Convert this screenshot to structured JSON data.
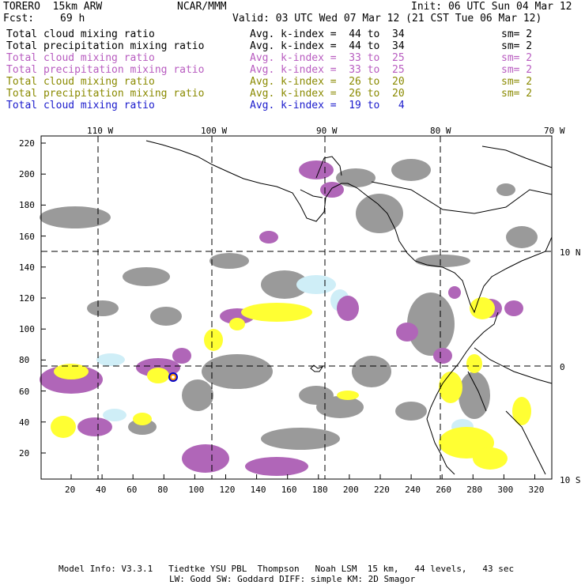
{
  "header": {
    "model_label": "TORERO  15km ARW",
    "org": "NCAR/MMM",
    "init": "Init: 06 UTC Sun 04 Mar 12",
    "fcst_label": "Fcst:",
    "fcst_value": "69 h",
    "valid": "Valid: 03 UTC Wed 07 Mar 12 (21 CST Tue 06 Mar 12)"
  },
  "legend_rows": [
    {
      "field": "Total cloud mixing ratio",
      "kindex": "Avg. k-index =  44 to  34",
      "sm": "sm= 2",
      "color": "#000000"
    },
    {
      "field": "Total precipitation mixing ratio",
      "kindex": "Avg. k-index =  44 to  34",
      "sm": "sm= 2",
      "color": "#000000"
    },
    {
      "field": "Total cloud mixing ratio",
      "kindex": "Avg. k-index =  33 to  25",
      "sm": "sm= 2",
      "color": "#b85cc0"
    },
    {
      "field": "Total precipitation mixing ratio",
      "kindex": "Avg. k-index =  33 to  25",
      "sm": "sm= 2",
      "color": "#b85cc0"
    },
    {
      "field": "Total cloud mixing ratio",
      "kindex": "Avg. k-index =  26 to  20",
      "sm": "sm= 2",
      "color": "#8a8a00"
    },
    {
      "field": "Total precipitation mixing ratio",
      "kindex": "Avg. k-index =  26 to  20",
      "sm": "sm= 2",
      "color": "#8a8a00"
    },
    {
      "field": "Total cloud mixing ratio",
      "kindex": "Avg. k-index =  19 to   4",
      "sm": "",
      "color": "#1a1acc"
    }
  ],
  "map": {
    "lon_labels": [
      "110 W",
      "100 W",
      "90 W",
      "80 W",
      "70 W"
    ],
    "lat_labels": [
      "10 N",
      "0",
      "10 S"
    ],
    "y_ticks": [
      "220",
      "200",
      "180",
      "160",
      "140",
      "120",
      "100",
      "80",
      "60",
      "40",
      "20"
    ],
    "x_ticks": [
      "20",
      "40",
      "60",
      "80",
      "100",
      "120",
      "140",
      "160",
      "180",
      "200",
      "220",
      "240",
      "260",
      "280",
      "300",
      "320"
    ],
    "colors": {
      "gray": "#9a9a9a",
      "purple": "#b066b8",
      "yellow": "#ffff33",
      "lightblue": "#cfeef7",
      "coast": "#000000"
    }
  },
  "footer": {
    "line1": "Model Info: V3.3.1   Tiedtke YSU PBL  Thompson   Noah LSM  15 km,   44 levels,   43 sec",
    "line2": "LW: Godd SW: Goddard DIFF: simple KM: 2D Smagor"
  }
}
